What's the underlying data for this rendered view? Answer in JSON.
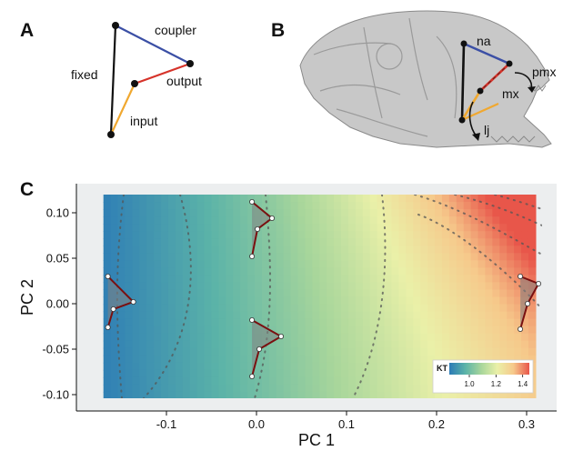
{
  "panels": {
    "a": {
      "label": "A",
      "links": {
        "coupler": "coupler",
        "fixed": "fixed",
        "output": "output",
        "input": "input"
      },
      "colors": {
        "coupler": "#3b4fa5",
        "fixed": "#111111",
        "output": "#d6332a",
        "input": "#f0a830"
      }
    },
    "b": {
      "label": "B",
      "labels": {
        "na": "na",
        "pmx": "pmx",
        "mx": "mx",
        "lj": "lj"
      }
    },
    "c": {
      "label": "C"
    }
  },
  "chart_data": {
    "type": "heatmap",
    "xlabel": "PC 1",
    "ylabel": "PC 2",
    "xlim": [
      -0.17,
      0.31
    ],
    "ylim": [
      -0.105,
      0.12
    ],
    "xticks": [
      -0.1,
      0.0,
      0.1,
      0.2,
      0.3
    ],
    "xtick_labels": [
      "-0.1",
      "0.0",
      "0.1",
      "0.2",
      "0.3"
    ],
    "yticks": [
      -0.1,
      -0.05,
      0.0,
      0.05,
      0.1
    ],
    "ytick_labels": [
      "-0.10",
      "-0.05",
      "0.00",
      "0.05",
      "0.10"
    ],
    "colorbar": {
      "title": "KT",
      "ticks": [
        1.0,
        1.2,
        1.4
      ],
      "tick_labels": [
        "1.0",
        "1.2",
        "1.4"
      ],
      "range": [
        0.85,
        1.45
      ],
      "colors": [
        "#2c7bb6",
        "#5bb3a8",
        "#a8d69b",
        "#eaf0a8",
        "#f6c98b",
        "#e8564a"
      ]
    },
    "glyphs": [
      {
        "pc1": -0.163,
        "pc2": 0.0
      },
      {
        "pc1": -0.005,
        "pc2": 0.08
      },
      {
        "pc1": -0.005,
        "pc2": -0.05
      },
      {
        "pc1": 0.293,
        "pc2": 0.0
      }
    ]
  }
}
